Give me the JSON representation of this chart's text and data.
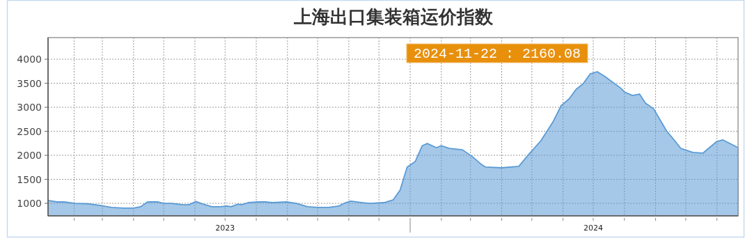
{
  "chart_data": {
    "type": "area",
    "title": "上海出口集装箱运价指数",
    "x": [
      "2023-01-06",
      "2023-01-15",
      "2023-01-22",
      "2023-02-02",
      "2023-02-15",
      "2023-02-26",
      "2023-03-10",
      "2023-03-22",
      "2023-04-01",
      "2023-04-08",
      "2023-04-15",
      "2023-04-25",
      "2023-05-01",
      "2023-05-09",
      "2023-05-20",
      "2023-05-26",
      "2023-06-02",
      "2023-06-09",
      "2023-06-18",
      "2023-06-26",
      "2023-07-03",
      "2023-07-07",
      "2023-07-14",
      "2023-07-17",
      "2023-07-24",
      "2023-08-03",
      "2023-08-10",
      "2023-08-17",
      "2023-08-31",
      "2023-09-10",
      "2023-09-21",
      "2023-10-01",
      "2023-10-12",
      "2023-10-22",
      "2023-10-29",
      "2023-11-03",
      "2023-11-15",
      "2023-11-22",
      "2023-12-06",
      "2023-12-15",
      "2023-12-22",
      "2023-12-29",
      "2024-01-06",
      "2024-01-13",
      "2024-01-18",
      "2024-01-27",
      "2024-02-01",
      "2024-02-09",
      "2024-02-22",
      "2024-03-03",
      "2024-03-11",
      "2024-03-16",
      "2024-04-01",
      "2024-04-18",
      "2024-04-29",
      "2024-05-10",
      "2024-05-22",
      "2024-05-30",
      "2024-06-07",
      "2024-06-14",
      "2024-06-21",
      "2024-06-28",
      "2024-07-05",
      "2024-07-12",
      "2024-07-28",
      "2024-08-01",
      "2024-08-09",
      "2024-08-16",
      "2024-08-22",
      "2024-08-30",
      "2024-09-12",
      "2024-09-19",
      "2024-09-26",
      "2024-10-08",
      "2024-10-18",
      "2024-11-01",
      "2024-11-07",
      "2024-11-22"
    ],
    "series": [
      {
        "color": "#5b9bd5",
        "values": [
          1060,
          1030,
          1030,
          1000,
          990,
          960,
          915,
          900,
          900,
          930,
          1030,
          1030,
          1000,
          1000,
          970,
          970,
          1040,
          985,
          930,
          930,
          945,
          930,
          985,
          970,
          1015,
          1030,
          1030,
          1015,
          1030,
          1000,
          930,
          915,
          915,
          945,
          1015,
          1045,
          1015,
          1000,
          1015,
          1070,
          1275,
          1755,
          1870,
          2200,
          2245,
          2160,
          2200,
          2145,
          2115,
          1970,
          1825,
          1755,
          1740,
          1770,
          2045,
          2305,
          2695,
          3030,
          3175,
          3375,
          3490,
          3695,
          3740,
          3650,
          3405,
          3320,
          3245,
          3275,
          3085,
          2970,
          2505,
          2330,
          2145,
          2060,
          2045,
          2290,
          2320,
          2160.08
        ]
      }
    ],
    "annotations": [
      "2024-11-22 : 2160.08"
    ],
    "xlim": [
      "2023-01-06",
      "2024-11-22"
    ],
    "xticks": [
      {
        "value": "2023-02-01",
        "label": null
      },
      {
        "value": "2023-03-01",
        "label": null
      },
      {
        "value": "2023-04-01",
        "label": null
      },
      {
        "value": "2023-05-01",
        "label": null
      },
      {
        "value": "2023-06-01",
        "label": null
      },
      {
        "value": "2023-07-01",
        "label": "2023"
      },
      {
        "value": "2023-08-01",
        "label": null
      },
      {
        "value": "2023-09-01",
        "label": null
      },
      {
        "value": "2023-10-01",
        "label": null
      },
      {
        "value": "2023-11-01",
        "label": null
      },
      {
        "value": "2023-12-01",
        "label": null
      },
      {
        "value": "2024-01-01",
        "label": null
      },
      {
        "value": "2024-02-01",
        "label": null
      },
      {
        "value": "2024-03-01",
        "label": null
      },
      {
        "value": "2024-04-01",
        "label": null
      },
      {
        "value": "2024-05-01",
        "label": null
      },
      {
        "value": "2024-06-01",
        "label": null
      },
      {
        "value": "2024-07-01",
        "label": "2024"
      },
      {
        "value": "2024-08-01",
        "label": null
      },
      {
        "value": "2024-09-01",
        "label": null
      },
      {
        "value": "2024-10-01",
        "label": null
      },
      {
        "value": "2024-11-01",
        "label": null
      }
    ],
    "ylim": [
      740,
      4450
    ],
    "yticks": [
      1000,
      1500,
      2000,
      2500,
      3000,
      3500,
      4000
    ],
    "grid": true
  }
}
